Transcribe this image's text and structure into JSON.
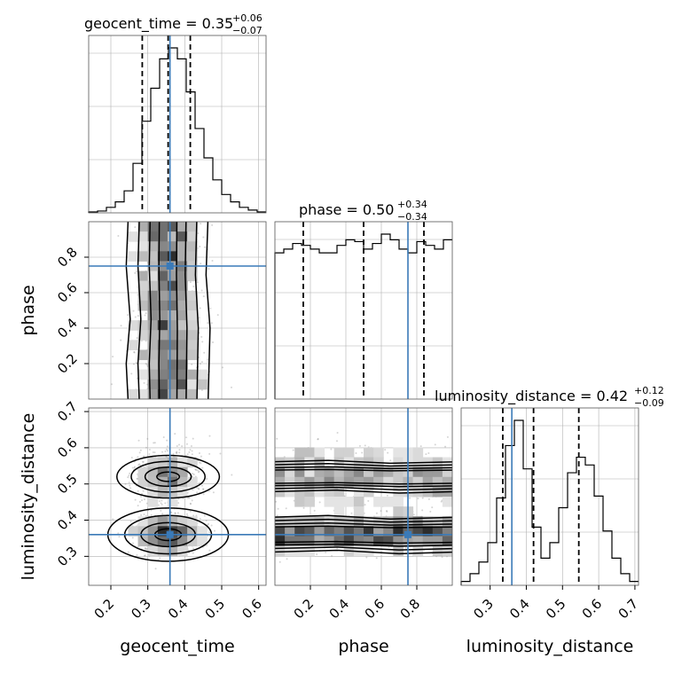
{
  "titles": {
    "geocent_time": "geocent_time = 0.35",
    "geocent_time_sup": "+0.06",
    "geocent_time_sub": "−0.07",
    "phase": "phase = 0.50",
    "phase_sup": "+0.34",
    "phase_sub": "−0.34",
    "luminosity_distance": "luminosity_distance = 0.42",
    "luminosity_distance_sup": "+0.12",
    "luminosity_distance_sub": "−0.09"
  },
  "axis_labels": {
    "geocent_time": "geocent_time",
    "phase": "phase",
    "luminosity_distance": "luminosity_distance"
  },
  "colors": {
    "truth": "#3a7ab8",
    "hist": "#000000",
    "grid": "#b0b0b0"
  },
  "chart_data": {
    "type": "corner",
    "parameters": [
      "geocent_time",
      "phase",
      "luminosity_distance"
    ],
    "truth": {
      "geocent_time": 0.36,
      "phase": 0.75,
      "luminosity_distance": 0.36
    },
    "quantiles": {
      "geocent_time": [
        0.285,
        0.355,
        0.415
      ],
      "phase": [
        0.16,
        0.5,
        0.84
      ],
      "luminosity_distance": [
        0.335,
        0.42,
        0.545
      ]
    },
    "ranges": {
      "geocent_time": [
        0.14,
        0.62
      ],
      "phase": [
        0.0,
        1.0
      ],
      "luminosity_distance": [
        0.22,
        0.71
      ]
    },
    "ticks": {
      "geocent_time": [
        "0.2",
        "0.3",
        "0.4",
        "0.5",
        "0.6"
      ],
      "phase": [
        "0.2",
        "0.4",
        "0.6",
        "0.8"
      ],
      "luminosity_distance": [
        "0.3",
        "0.4",
        "0.5",
        "0.6",
        "0.7"
      ]
    },
    "histograms": {
      "geocent_time": {
        "edges_start": 0.14,
        "bin_width": 0.024,
        "values": [
          0.5,
          1,
          3,
          6,
          12,
          27,
          50,
          68,
          84,
          90,
          84,
          66,
          46,
          30,
          18,
          10,
          6,
          3,
          1.5,
          0.5
        ]
      },
      "phase": {
        "edges_start": 0.0,
        "bin_width": 0.05,
        "values": [
          78,
          80,
          83,
          82,
          80,
          78,
          78,
          82,
          85,
          84,
          80,
          83,
          88,
          85,
          80,
          78,
          84,
          82,
          80,
          85
        ]
      },
      "luminosity_distance": {
        "edges_start": 0.22,
        "bin_width": 0.0245,
        "values": [
          2,
          6,
          12,
          22,
          45,
          72,
          85,
          60,
          30,
          14,
          22,
          40,
          58,
          66,
          62,
          46,
          28,
          14,
          6,
          2
        ]
      }
    },
    "grid": true
  }
}
